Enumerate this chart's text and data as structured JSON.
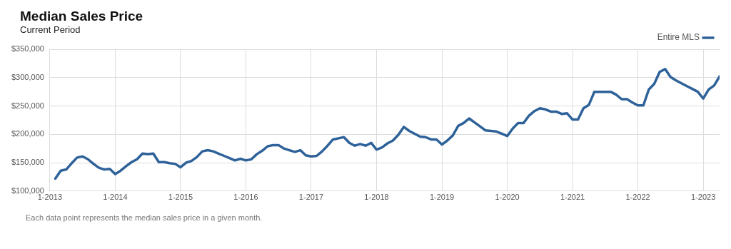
{
  "chart_data": {
    "type": "line",
    "title": "Median Sales Price",
    "subtitle": "Current Period",
    "annotations": [
      "Each data point represents the median sales price in a given month."
    ],
    "x": [
      "2013-02",
      "2013-03",
      "2013-04",
      "2013-05",
      "2013-06",
      "2013-07",
      "2013-08",
      "2013-09",
      "2013-10",
      "2013-11",
      "2013-12",
      "2014-01",
      "2014-02",
      "2014-03",
      "2014-04",
      "2014-05",
      "2014-06",
      "2014-07",
      "2014-08",
      "2014-09",
      "2014-10",
      "2014-11",
      "2014-12",
      "2015-01",
      "2015-02",
      "2015-03",
      "2015-04",
      "2015-05",
      "2015-06",
      "2015-07",
      "2015-08",
      "2015-09",
      "2015-10",
      "2015-11",
      "2015-12",
      "2016-01",
      "2016-02",
      "2016-03",
      "2016-04",
      "2016-05",
      "2016-06",
      "2016-07",
      "2016-08",
      "2016-09",
      "2016-10",
      "2016-11",
      "2016-12",
      "2017-01",
      "2017-02",
      "2017-03",
      "2017-04",
      "2017-05",
      "2017-06",
      "2017-07",
      "2017-08",
      "2017-09",
      "2017-10",
      "2017-11",
      "2017-12",
      "2018-01",
      "2018-02",
      "2018-03",
      "2018-04",
      "2018-05",
      "2018-06",
      "2018-07",
      "2018-08",
      "2018-09",
      "2018-10",
      "2018-11",
      "2018-12",
      "2019-01",
      "2019-02",
      "2019-03",
      "2019-04",
      "2019-05",
      "2019-06",
      "2019-07",
      "2019-08",
      "2019-09",
      "2019-10",
      "2019-11",
      "2019-12",
      "2020-01",
      "2020-02",
      "2020-03",
      "2020-04",
      "2020-05",
      "2020-06",
      "2020-07",
      "2020-08",
      "2020-09",
      "2020-10",
      "2020-11",
      "2020-12",
      "2021-01",
      "2021-02",
      "2021-03",
      "2021-04",
      "2021-05",
      "2021-06",
      "2021-07",
      "2021-08",
      "2021-09",
      "2021-10",
      "2021-11",
      "2021-12",
      "2022-01",
      "2022-02",
      "2022-03",
      "2022-04",
      "2022-05",
      "2022-06",
      "2022-07",
      "2022-08",
      "2022-09",
      "2022-10",
      "2022-11",
      "2022-12",
      "2023-01",
      "2023-02",
      "2023-03",
      "2023-04"
    ],
    "series": [
      {
        "name": "Entire MLS",
        "color": "#2e6299",
        "values": [
          122000,
          136000,
          138000,
          149000,
          159000,
          161000,
          156000,
          148000,
          141000,
          138000,
          139000,
          130000,
          136000,
          144000,
          151000,
          156000,
          166000,
          165000,
          166000,
          151000,
          151000,
          149000,
          148000,
          142000,
          150000,
          153000,
          160000,
          170000,
          172000,
          170000,
          166000,
          162000,
          158000,
          154000,
          157000,
          154000,
          156000,
          165000,
          171000,
          179000,
          181000,
          181000,
          175000,
          172000,
          169000,
          172000,
          163000,
          161000,
          162000,
          170000,
          180000,
          191000,
          193000,
          195000,
          185000,
          180000,
          183000,
          180000,
          185000,
          173000,
          177000,
          184000,
          189000,
          199000,
          213000,
          206000,
          201000,
          196000,
          195000,
          191000,
          191000,
          182000,
          189000,
          198000,
          215000,
          220000,
          228000,
          221000,
          214000,
          207000,
          206000,
          205000,
          201000,
          197000,
          210000,
          220000,
          220000,
          233000,
          241000,
          246000,
          244000,
          240000,
          240000,
          236000,
          237000,
          226000,
          226000,
          246000,
          252000,
          275000,
          275000,
          275000,
          275000,
          270000,
          262000,
          262000,
          256000,
          251000,
          251000,
          279000,
          289000,
          310000,
          315000,
          301000,
          295000,
          290000,
          285000,
          280000,
          275000,
          263000,
          279000,
          286000,
          302000
        ]
      }
    ],
    "xlim": [
      "2013-01",
      "2023-04"
    ],
    "xticks": [
      {
        "value": "2013-01",
        "label": "1-2013"
      },
      {
        "value": "2014-01",
        "label": "1-2014"
      },
      {
        "value": "2015-01",
        "label": "1-2015"
      },
      {
        "value": "2016-01",
        "label": "1-2016"
      },
      {
        "value": "2017-01",
        "label": "1-2017"
      },
      {
        "value": "2018-01",
        "label": "1-2018"
      },
      {
        "value": "2019-01",
        "label": "1-2019"
      },
      {
        "value": "2020-01",
        "label": "1-2020"
      },
      {
        "value": "2021-01",
        "label": "1-2021"
      },
      {
        "value": "2022-01",
        "label": "1-2022"
      },
      {
        "value": "2023-01",
        "label": "1-2023"
      }
    ],
    "ylim": [
      100000,
      350000
    ],
    "yticks": [
      {
        "value": 100000,
        "label": "$100,000"
      },
      {
        "value": 150000,
        "label": "$150,000"
      },
      {
        "value": 200000,
        "label": "$200,000"
      },
      {
        "value": 250000,
        "label": "$250,000"
      },
      {
        "value": 300000,
        "label": "$300,000"
      },
      {
        "value": 350000,
        "label": "$350,000"
      }
    ],
    "grid": true,
    "legend": "top right",
    "marker": "none",
    "line_style": "solid"
  }
}
